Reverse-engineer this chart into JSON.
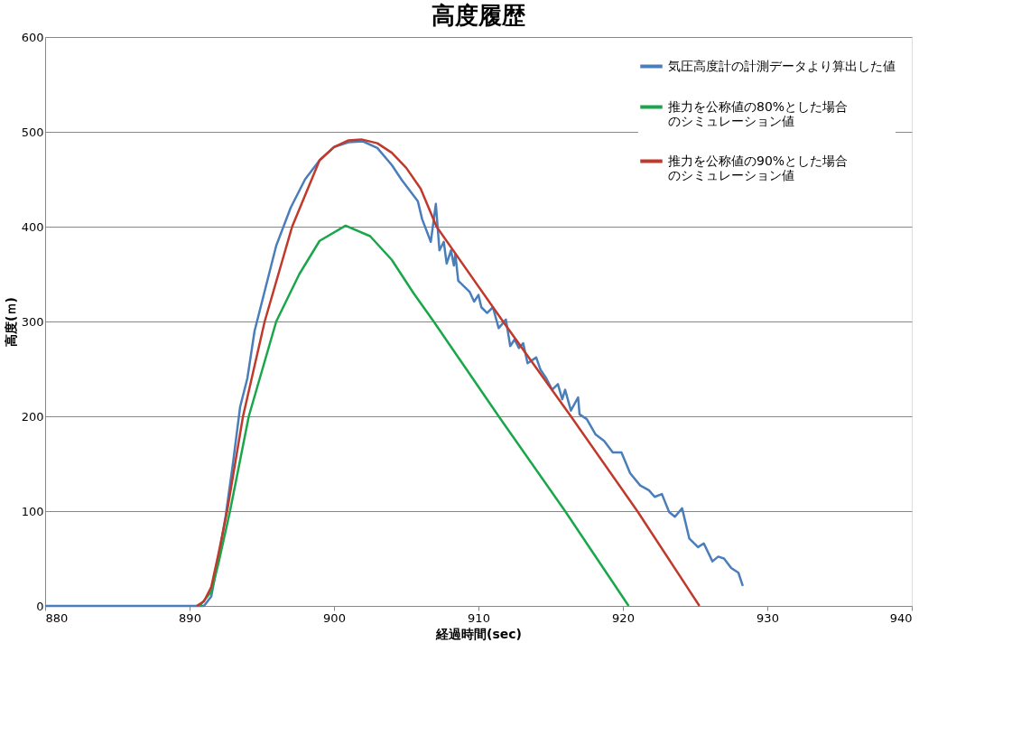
{
  "chart_data": {
    "type": "line",
    "title": "高度履歴",
    "xlabel": "経過時間(sec)",
    "ylabel": "高度(ｍ)",
    "xlim": [
      880,
      940
    ],
    "xticks": [
      880,
      890,
      900,
      910,
      920,
      930,
      940
    ],
    "ylim": [
      0,
      600
    ],
    "yticks": [
      0,
      100,
      200,
      300,
      400,
      500,
      600
    ],
    "grid": "y",
    "legend": "top right",
    "marker": "none",
    "line_style": "solid",
    "series": [
      {
        "name": "気圧高度計の計測データより算出した値",
        "color": "#4a7ebb",
        "x": [
          880,
          885,
          891,
          891.5,
          892,
          892.5,
          893,
          893.5,
          894,
          894.5,
          895,
          896,
          897,
          898,
          899,
          900,
          901,
          902,
          903,
          904,
          904.7,
          905.8,
          906.1,
          906.7,
          907.05,
          907.3,
          907.6,
          907.8,
          908.1,
          908.3,
          908.4,
          908.6,
          909.0,
          909.4,
          909.7,
          910.0,
          910.2,
          910.6,
          911.0,
          911.4,
          911.9,
          912.2,
          912.5,
          912.8,
          913.1,
          913.4,
          914.0,
          914.3,
          914.7,
          915.1,
          915.5,
          915.8,
          916.0,
          916.4,
          916.9,
          917.0,
          917.5,
          918.1,
          918.7,
          919.3,
          919.9,
          920.5,
          921.2,
          921.8,
          922.2,
          922.7,
          923.2,
          923.6,
          924.1,
          924.6,
          925.2,
          925.6,
          926.2,
          926.6,
          927,
          927.5,
          928,
          928.3
        ],
        "values": [
          0,
          0,
          0,
          10,
          50,
          95,
          150,
          210,
          240,
          290,
          320,
          380,
          420,
          450,
          470,
          484,
          489,
          490,
          483,
          465,
          449,
          427,
          408,
          384,
          424,
          375,
          384,
          361,
          375,
          359,
          371,
          343,
          337,
          331,
          321,
          328,
          315,
          309,
          315,
          293,
          302,
          274,
          281,
          272,
          277,
          256,
          262,
          249,
          240,
          228,
          234,
          218,
          228,
          206,
          220,
          202,
          197,
          181,
          174,
          162,
          162,
          140,
          127,
          122,
          115,
          118,
          99,
          94,
          103,
          71,
          62,
          66,
          47,
          52,
          50,
          40,
          35,
          21
        ]
      },
      {
        "name": "推力を公称値の80%とした場合のシミュレーション値",
        "color": "#1aa64a",
        "x": [
          890.7,
          891.5,
          892,
          892.8,
          894.1,
          896.0,
          897.6,
          899,
          900.8,
          902.5,
          904,
          905.5,
          906.9,
          911.4,
          916.0,
          920.4
        ],
        "values": [
          0,
          15,
          45,
          100,
          200,
          300,
          350,
          385,
          401,
          390,
          365,
          330,
          300,
          200,
          100,
          0
        ]
      },
      {
        "name": "推力を公称値の90%とした場合のシミュレーション値",
        "color": "#c0392b",
        "x": [
          890.5,
          891,
          891.5,
          892,
          892.6,
          893.7,
          895.2,
          897.1,
          899,
          900,
          901,
          901.9,
          903,
          904,
          905,
          906,
          907.1,
          911.7,
          916.4,
          921.0,
          925.3
        ],
        "values": [
          0,
          5,
          20,
          55,
          100,
          200,
          300,
          400,
          470,
          484,
          491,
          492,
          488,
          478,
          462,
          440,
          400,
          300,
          200,
          100,
          0
        ]
      }
    ]
  }
}
